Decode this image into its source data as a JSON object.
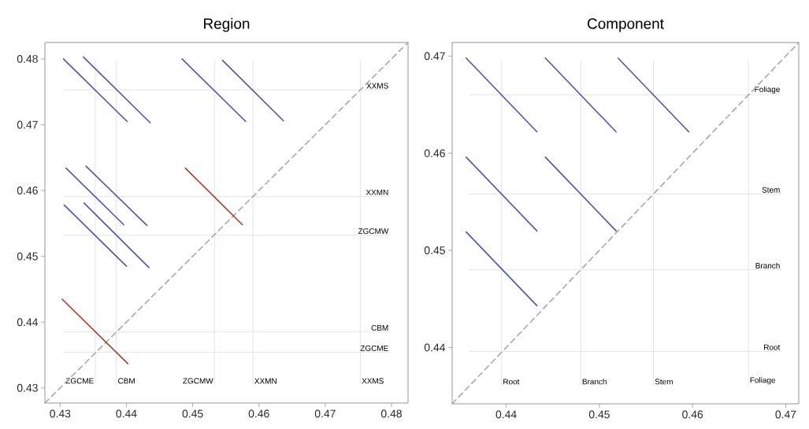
{
  "chart_data": [
    {
      "type": "line",
      "title": "Region",
      "xlim": [
        0.4277,
        0.4825
      ],
      "ylim": [
        0.4277,
        0.4825
      ],
      "xticks": [
        0.43,
        0.44,
        0.45,
        0.46,
        0.47,
        0.48
      ],
      "yticks": [
        0.43,
        0.44,
        0.45,
        0.46,
        0.47,
        0.48
      ],
      "line_style": "solid",
      "ref_lines": [
        {
          "axis": "x",
          "value": 0.4353,
          "label": "ZGCME",
          "color": "#e4e4e4"
        },
        {
          "axis": "x",
          "value": 0.4385,
          "label": "CBM",
          "color": "#e4e4e4"
        },
        {
          "axis": "x",
          "value": 0.4533,
          "label": "ZGCMW",
          "color": "#e4e4e4"
        },
        {
          "axis": "x",
          "value": 0.4591,
          "label": "XXMN",
          "color": "#e4e4e4"
        },
        {
          "axis": "x",
          "value": 0.4753,
          "label": "XXMS",
          "color": "#e4e4e4"
        },
        {
          "axis": "y",
          "value": 0.4753,
          "label": "XXMS",
          "color": "#e4e4e4"
        },
        {
          "axis": "y",
          "value": 0.4591,
          "label": "XXMN",
          "color": "#e4e4e4"
        },
        {
          "axis": "y",
          "value": 0.4532,
          "label": "ZGCMW",
          "color": "#e4e4e4"
        },
        {
          "axis": "y",
          "value": 0.4385,
          "label": "CBM",
          "color": "#e4e4e4"
        },
        {
          "axis": "y",
          "value": 0.4354,
          "label": "ZGCME",
          "color": "#e4e4e4"
        }
      ],
      "series": [
        {
          "x": [
            0.4277,
            0.4825
          ],
          "values": [
            0.4277,
            0.4825
          ],
          "color": "#a8a8a8",
          "line_style": "dashed"
        },
        {
          "x": [
            0.4305,
            0.4401
          ],
          "values": [
            0.48,
            0.4705
          ],
          "color": "#4a58a6"
        },
        {
          "x": [
            0.4335,
            0.4436
          ],
          "values": [
            0.4803,
            0.4703
          ],
          "color": "#4a58a6"
        },
        {
          "x": [
            0.4484,
            0.458
          ],
          "values": [
            0.48,
            0.4705
          ],
          "color": "#4a58a6"
        },
        {
          "x": [
            0.4545,
            0.4637
          ],
          "values": [
            0.4798,
            0.4706
          ],
          "color": "#4a58a6"
        },
        {
          "x": [
            0.4309,
            0.4396
          ],
          "values": [
            0.4634,
            0.4548
          ],
          "color": "#4a58a6"
        },
        {
          "x": [
            0.4339,
            0.4431
          ],
          "values": [
            0.4637,
            0.4547
          ],
          "color": "#4a58a6"
        },
        {
          "x": [
            0.4489,
            0.4575
          ],
          "values": [
            0.4634,
            0.4548
          ],
          "color": "#ad3b2b"
        },
        {
          "x": [
            0.4306,
            0.44
          ],
          "values": [
            0.4578,
            0.4485
          ],
          "color": "#4a58a6"
        },
        {
          "x": [
            0.4336,
            0.4434
          ],
          "values": [
            0.4581,
            0.4483
          ],
          "color": "#4a58a6"
        },
        {
          "x": [
            0.4303,
            0.4402
          ],
          "values": [
            0.4435,
            0.4337
          ],
          "color": "#ad3b2b"
        }
      ]
    },
    {
      "type": "line",
      "title": "Component",
      "xlim": [
        0.4342,
        0.4714
      ],
      "ylim": [
        0.4342,
        0.4714
      ],
      "xticks": [
        0.44,
        0.45,
        0.46,
        0.47
      ],
      "yticks": [
        0.44,
        0.45,
        0.46,
        0.47
      ],
      "line_style": "solid",
      "ref_lines": [
        {
          "axis": "x",
          "value": 0.4395,
          "label": "Root",
          "color": "#e4e4e4"
        },
        {
          "axis": "x",
          "value": 0.448,
          "label": "Branch",
          "color": "#e4e4e4"
        },
        {
          "axis": "x",
          "value": 0.4558,
          "label": "Stem",
          "color": "#e4e4e4"
        },
        {
          "axis": "x",
          "value": 0.466,
          "label": "Foliage",
          "color": "#e4e4e4"
        },
        {
          "axis": "y",
          "value": 0.466,
          "label": "Foliage",
          "color": "#e4e4e4"
        },
        {
          "axis": "y",
          "value": 0.4558,
          "label": "Stem",
          "color": "#e4e4e4"
        },
        {
          "axis": "y",
          "value": 0.448,
          "label": "Branch",
          "color": "#e4e4e4"
        },
        {
          "axis": "y",
          "value": 0.4396,
          "label": "Root",
          "color": "#e4e4e4"
        }
      ],
      "series": [
        {
          "x": [
            0.4342,
            0.4714
          ],
          "values": [
            0.4342,
            0.4714
          ],
          "color": "#a8a8a8",
          "line_style": "dashed"
        },
        {
          "x": [
            0.4357,
            0.4433
          ],
          "values": [
            0.4698,
            0.4622
          ],
          "color": "#4a58a6"
        },
        {
          "x": [
            0.4442,
            0.4518
          ],
          "values": [
            0.4698,
            0.4622
          ],
          "color": "#4a58a6"
        },
        {
          "x": [
            0.452,
            0.4596
          ],
          "values": [
            0.4698,
            0.4622
          ],
          "color": "#4a58a6"
        },
        {
          "x": [
            0.4357,
            0.4433
          ],
          "values": [
            0.4596,
            0.452
          ],
          "color": "#4a58a6"
        },
        {
          "x": [
            0.4442,
            0.4518
          ],
          "values": [
            0.4596,
            0.452
          ],
          "color": "#4a58a6"
        },
        {
          "x": [
            0.4357,
            0.4433
          ],
          "values": [
            0.4519,
            0.4443
          ],
          "color": "#4a58a6"
        }
      ]
    }
  ]
}
